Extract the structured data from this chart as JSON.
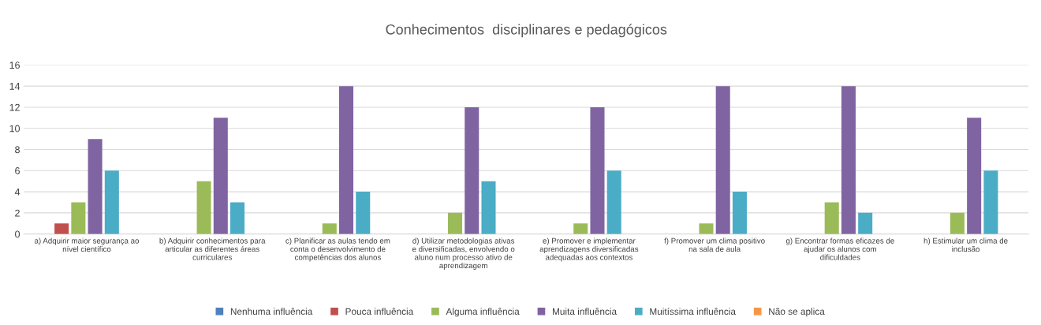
{
  "chart_data": {
    "type": "bar",
    "title": "Conhecimentos  disciplinares e pedagógicos",
    "categories": [
      "a) Adquirir maior segurança ao\nnível científico",
      "b) Adquirir conhecimentos para\narticular as diferentes áreas\ncurriculares",
      "c) Planificar as aulas tendo em\nconta o desenvolvimento de\ncompetências dos alunos",
      "d) Utilizar metodologias ativas\ne diversificadas, envolvendo o\naluno num processo ativo de\naprendizagem",
      "e) Promover e implementar\naprendizagens diversificadas\nadequadas aos contextos",
      "f) Promover um clima positivo\nna sala de aula",
      "g) Encontrar formas eficazes de\najudar os alunos com\ndificuldades",
      "h) Estimular um clima de\ninclusão"
    ],
    "series": [
      {
        "name": "Nenhuma influência",
        "color": "#4f81bd",
        "values": [
          0,
          0,
          0,
          0,
          0,
          0,
          0,
          0
        ]
      },
      {
        "name": "Pouca influência",
        "color": "#c0504d",
        "values": [
          1,
          0,
          0,
          0,
          0,
          0,
          0,
          0
        ]
      },
      {
        "name": "Alguma influência",
        "color": "#9bbb59",
        "values": [
          3,
          5,
          1,
          2,
          1,
          1,
          3,
          2
        ]
      },
      {
        "name": "Muita influência",
        "color": "#8064a2",
        "values": [
          9,
          11,
          14,
          12,
          12,
          14,
          14,
          11
        ]
      },
      {
        "name": "Muitíssima influência",
        "color": "#4bacc6",
        "values": [
          6,
          3,
          4,
          5,
          6,
          4,
          2,
          6
        ]
      },
      {
        "name": "Não se aplica",
        "color": "#f79646",
        "values": [
          0,
          0,
          0,
          0,
          0,
          0,
          0,
          0
        ]
      }
    ],
    "ylim": [
      0,
      16
    ],
    "yticks": [
      0,
      2,
      4,
      6,
      8,
      10,
      12,
      14,
      16
    ],
    "grid": "y",
    "legend": "bottom"
  }
}
